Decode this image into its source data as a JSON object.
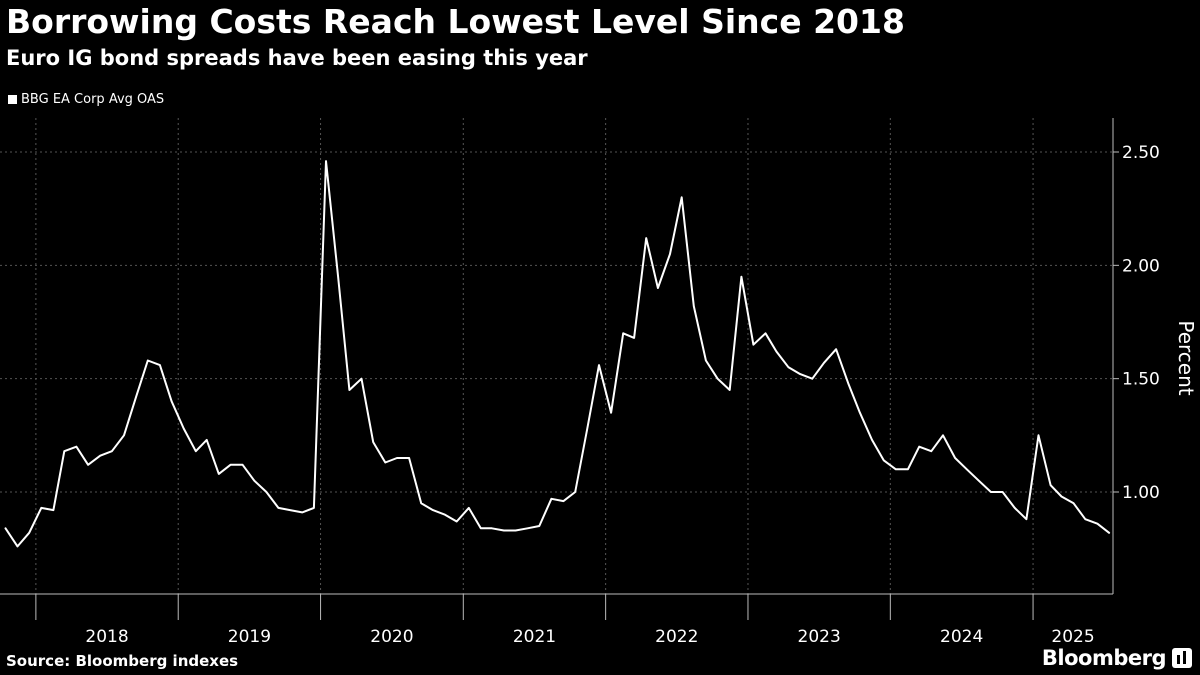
{
  "header": {
    "title": "Borrowing Costs Reach Lowest Level Since 2018",
    "subtitle": "Euro IG bond spreads have been easing this year"
  },
  "footer": {
    "source": "Source: Bloomberg indexes",
    "brand": "Bloomberg"
  },
  "colors": {
    "background": "#000000",
    "line": "#ffffff",
    "grid": "#555555"
  },
  "chart_data": {
    "type": "line",
    "title": "Borrowing Costs Reach Lowest Level Since 2018",
    "subtitle": "Euro IG bond spreads have been easing this year",
    "ylabel": "Percent",
    "xlabel": "",
    "y_axis_side": "right",
    "ylim": [
      0.55,
      2.65
    ],
    "y_ticks": [
      1.0,
      1.5,
      2.0,
      2.5
    ],
    "y_tick_labels": [
      "1.00",
      "1.50",
      "2.00",
      "2.50"
    ],
    "xlim": [
      "2017-10-01",
      "2025-07-25"
    ],
    "x_ticks": [
      "2018",
      "2019",
      "2020",
      "2021",
      "2022",
      "2023",
      "2024",
      "2025"
    ],
    "grid": true,
    "legend": "top-left",
    "series": [
      {
        "name": "BBG EA Corp Avg OAS",
        "x": [
          "2017-10",
          "2017-11",
          "2017-12",
          "2018-01",
          "2018-02",
          "2018-03",
          "2018-04",
          "2018-05",
          "2018-06",
          "2018-07",
          "2018-08",
          "2018-09",
          "2018-10",
          "2018-11",
          "2018-12",
          "2019-01",
          "2019-02",
          "2019-03",
          "2019-04",
          "2019-05",
          "2019-06",
          "2019-07",
          "2019-08",
          "2019-09",
          "2019-10",
          "2019-11",
          "2019-12",
          "2020-01",
          "2020-02",
          "2020-03",
          "2020-04",
          "2020-05",
          "2020-06",
          "2020-07",
          "2020-08",
          "2020-09",
          "2020-10",
          "2020-11",
          "2020-12",
          "2021-01",
          "2021-02",
          "2021-03",
          "2021-04",
          "2021-05",
          "2021-06",
          "2021-07",
          "2021-08",
          "2021-09",
          "2021-10",
          "2021-11",
          "2021-12",
          "2022-01",
          "2022-02",
          "2022-03",
          "2022-04",
          "2022-05",
          "2022-06",
          "2022-07",
          "2022-08",
          "2022-09",
          "2022-10",
          "2022-11",
          "2022-12",
          "2023-01",
          "2023-02",
          "2023-03",
          "2023-04",
          "2023-05",
          "2023-06",
          "2023-07",
          "2023-08",
          "2023-09",
          "2023-10",
          "2023-11",
          "2023-12",
          "2024-01",
          "2024-02",
          "2024-03",
          "2024-04",
          "2024-05",
          "2024-06",
          "2024-07",
          "2024-08",
          "2024-09",
          "2024-10",
          "2024-11",
          "2024-12",
          "2025-01",
          "2025-02",
          "2025-03",
          "2025-04",
          "2025-05",
          "2025-06",
          "2025-07"
        ],
        "values": [
          0.84,
          0.76,
          0.82,
          0.93,
          0.92,
          1.18,
          1.2,
          1.12,
          1.16,
          1.18,
          1.25,
          1.42,
          1.58,
          1.56,
          1.4,
          1.28,
          1.18,
          1.23,
          1.08,
          1.12,
          1.12,
          1.05,
          1.0,
          0.93,
          0.92,
          0.91,
          0.93,
          2.46,
          1.95,
          1.45,
          1.5,
          1.22,
          1.13,
          1.15,
          1.15,
          0.95,
          0.92,
          0.9,
          0.87,
          0.93,
          0.84,
          0.84,
          0.83,
          0.83,
          0.84,
          0.85,
          0.97,
          0.96,
          1.0,
          1.28,
          1.56,
          1.35,
          1.7,
          1.68,
          2.12,
          1.9,
          2.05,
          2.3,
          1.82,
          1.58,
          1.5,
          1.45,
          1.95,
          1.65,
          1.7,
          1.62,
          1.55,
          1.52,
          1.5,
          1.57,
          1.63,
          1.48,
          1.35,
          1.23,
          1.14,
          1.1,
          1.1,
          1.2,
          1.18,
          1.25,
          1.15,
          1.1,
          1.05,
          1.0,
          1.0,
          0.93,
          0.88,
          1.25,
          1.03,
          0.98,
          0.95,
          0.88,
          0.86,
          0.82
        ]
      }
    ]
  }
}
